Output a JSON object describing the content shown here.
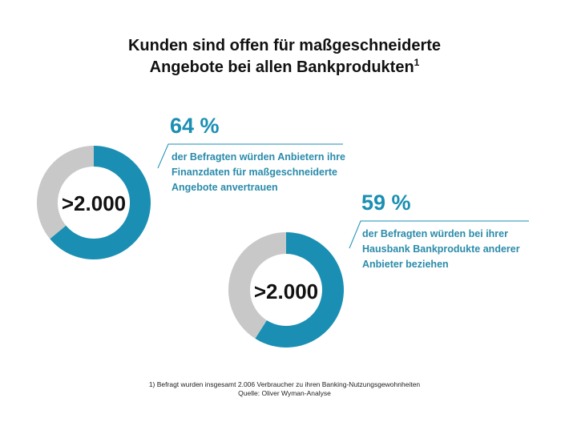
{
  "title": {
    "line1": "Kunden sind offen für maßgeschneiderte",
    "line2": "Angebote bei allen Bankprodukten",
    "superscript": "1"
  },
  "chart_data": [
    {
      "type": "pie",
      "variant": "donut",
      "center_label": ">2.000",
      "percent_label": "64 %",
      "values": [
        64,
        36
      ],
      "colors": [
        "#1a8fb3",
        "#c8c8c8"
      ],
      "description": [
        "der Befragten würden Anbietern ihre",
        "Finanzdaten für maßgeschneiderte",
        "Angebote anvertrauen"
      ]
    },
    {
      "type": "pie",
      "variant": "donut",
      "center_label": ">2.000",
      "percent_label": "59 %",
      "values": [
        59,
        41
      ],
      "colors": [
        "#1a8fb3",
        "#c8c8c8"
      ],
      "description": [
        "der Befragten würden bei ihrer",
        "Hausbank Bankprodukte anderer",
        "Anbieter beziehen"
      ]
    }
  ],
  "footnote": {
    "line1": "1) Befragt wurden insgesamt 2.006 Verbraucher zu ihren Banking-Nutzungsgewohnheiten",
    "line2": "Quelle: Oliver Wyman-Analyse"
  },
  "colors": {
    "accent": "#1a8fb3",
    "rest": "#c8c8c8",
    "text_accent": "#2a8bab"
  }
}
